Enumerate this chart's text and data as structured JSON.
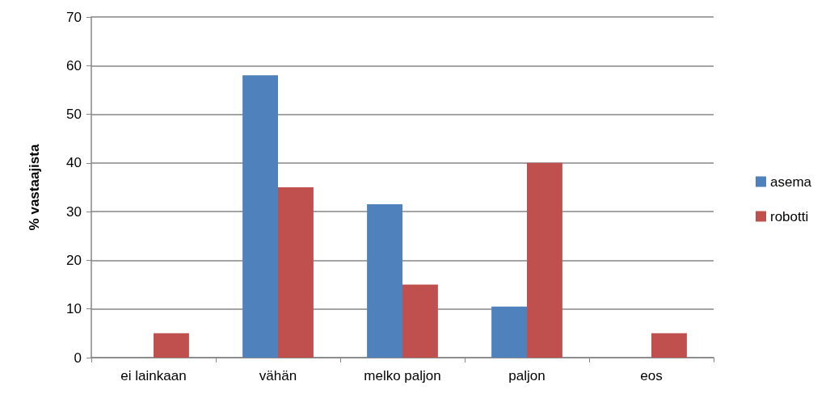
{
  "chart_data": {
    "type": "bar",
    "ylabel": "% vastaajista",
    "categories": [
      "ei lainkaan",
      "vähän",
      "melko paljon",
      "paljon",
      "eos"
    ],
    "series": [
      {
        "name": "asema",
        "color": "#4f81bd",
        "values": [
          0,
          58,
          31.5,
          10.5,
          0
        ]
      },
      {
        "name": "robotti",
        "color": "#c0504d",
        "values": [
          5,
          35,
          15,
          40,
          5
        ]
      }
    ],
    "ylim": [
      0,
      70
    ],
    "yticks": [
      0,
      10,
      20,
      30,
      40,
      50,
      60,
      70
    ],
    "grid": "y",
    "legend": "right"
  }
}
